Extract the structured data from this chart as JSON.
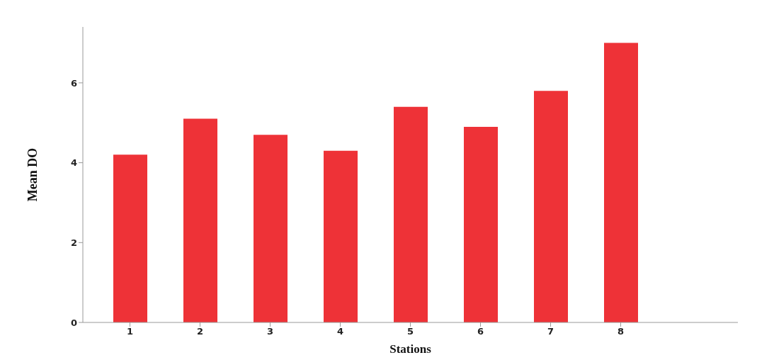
{
  "chart_data": {
    "type": "bar",
    "xlabel": "Stations",
    "ylabel": "Mean DO",
    "categories": [
      "1",
      "2",
      "3",
      "4",
      "5",
      "6",
      "7",
      "8"
    ],
    "values": [
      4.2,
      5.1,
      4.7,
      4.3,
      5.4,
      4.9,
      5.8,
      7.0
    ],
    "color": "#ee3237",
    "ylim": [
      0,
      7.4
    ],
    "yticks": [
      0,
      2,
      4,
      6
    ],
    "grid": false,
    "legend": false
  }
}
